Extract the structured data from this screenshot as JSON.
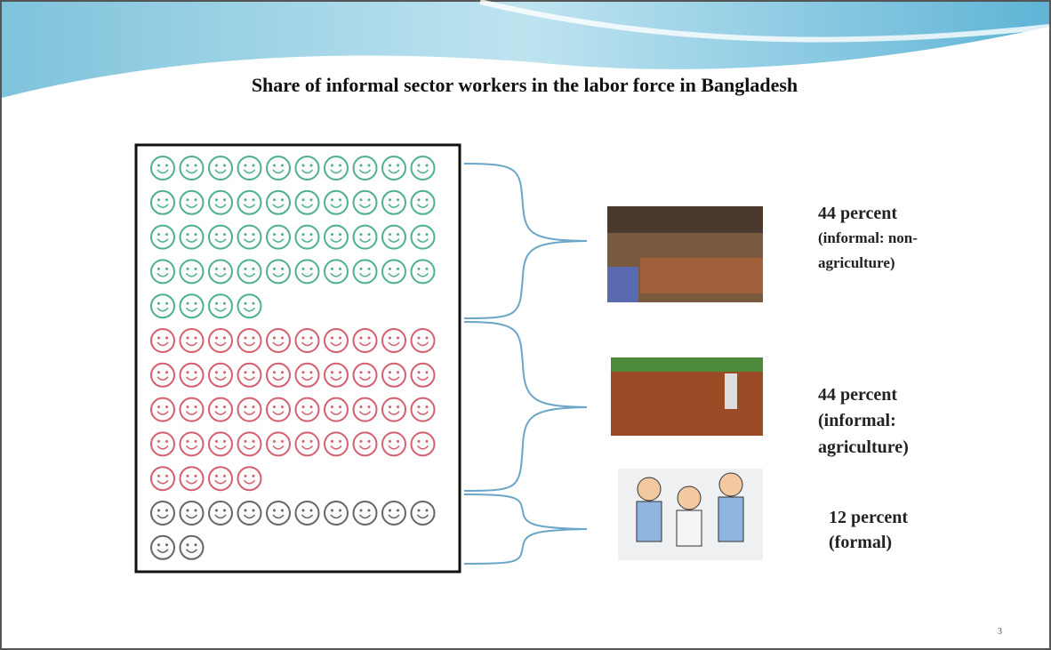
{
  "chart_data": {
    "type": "pictogram",
    "title": "Share of informal sector workers in the labor force in Bangladesh",
    "categories": [
      "(informal: non-agriculture)",
      "(informal: agriculture)",
      "(formal)"
    ],
    "values": [
      44,
      44,
      12
    ],
    "value_labels": [
      "44 percent",
      "44 percent",
      "12 percent"
    ],
    "colors": [
      "#4fb08f",
      "#d4606f",
      "#666666"
    ]
  },
  "page_number": "3"
}
